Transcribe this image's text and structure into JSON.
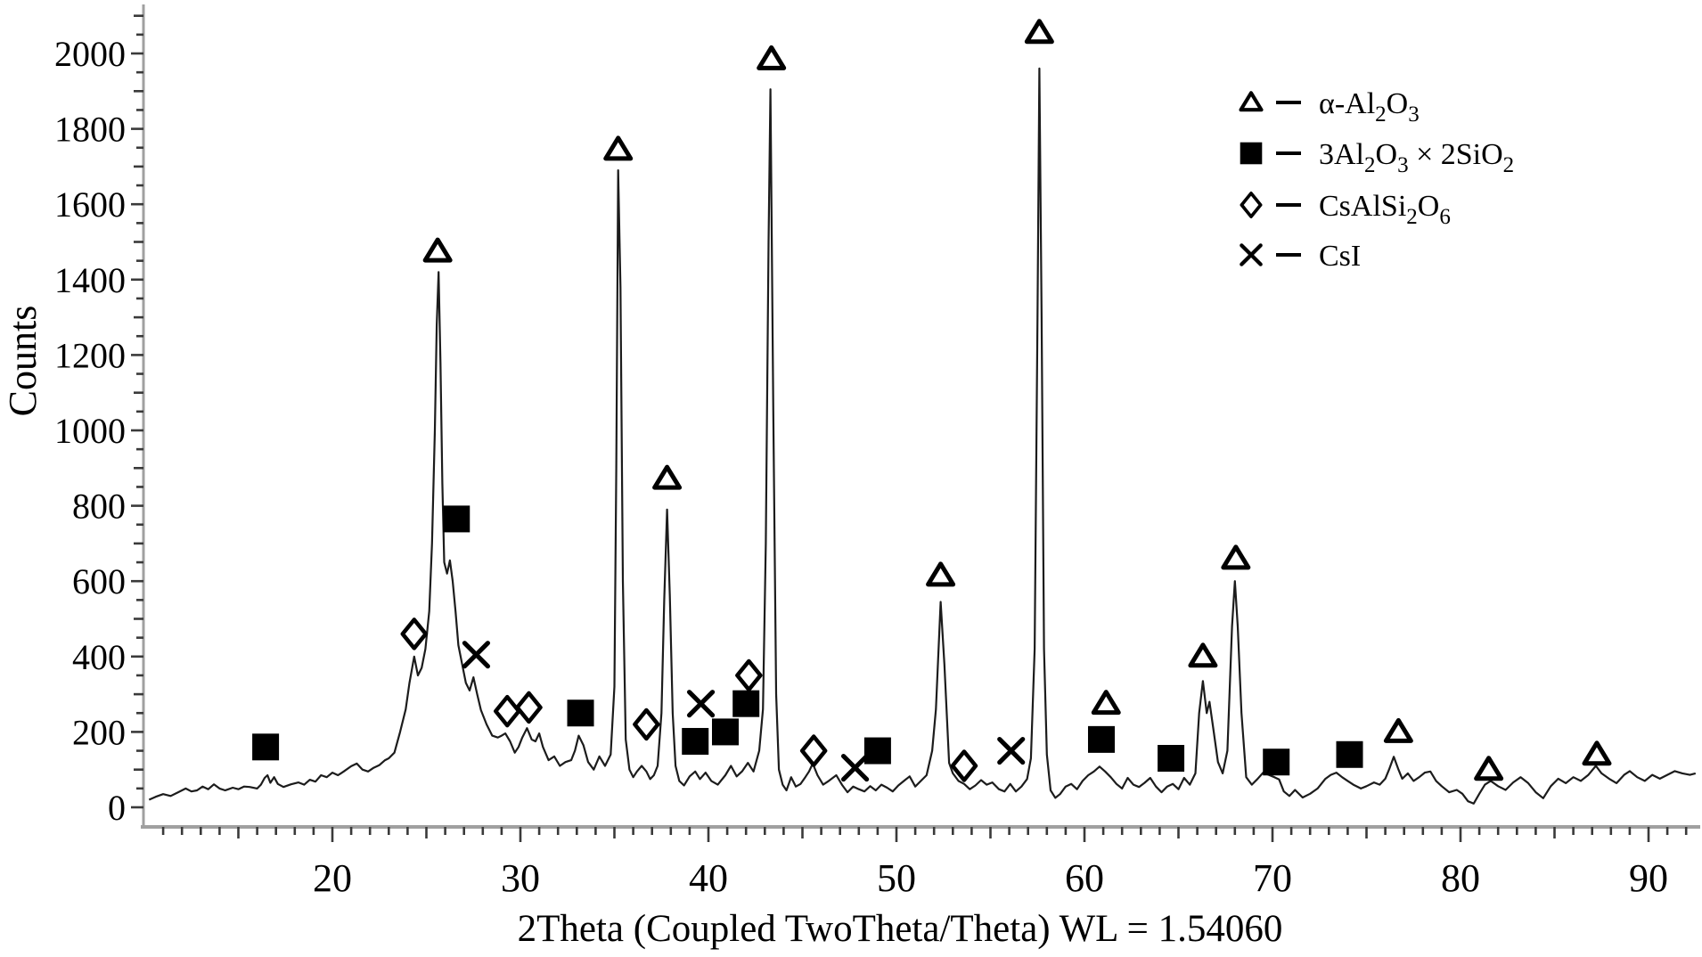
{
  "page": {
    "background": "#ffffff"
  },
  "colors": {
    "curve": "#1c1c1c",
    "marker": "#000000",
    "marker_fill": "#ffffff",
    "axis_line": "#a0a0a0",
    "tick": "#3a3a3a",
    "text": "#000000"
  },
  "legend": {
    "items": [
      {
        "name": "alpha-alumina",
        "symbol": "triangle",
        "segments": [
          {
            "t": "α-Al",
            "sub": false
          },
          {
            "t": "2",
            "sub": true
          },
          {
            "t": "O",
            "sub": false
          },
          {
            "t": "3",
            "sub": true
          }
        ]
      },
      {
        "name": "mullite",
        "symbol": "square",
        "segments": [
          {
            "t": "3Al",
            "sub": false
          },
          {
            "t": "2",
            "sub": true
          },
          {
            "t": "O",
            "sub": false
          },
          {
            "t": "3",
            "sub": true
          },
          {
            "t": " × 2SiO",
            "sub": false
          },
          {
            "t": "2",
            "sub": true
          }
        ]
      },
      {
        "name": "pollucite",
        "symbol": "diamond",
        "segments": [
          {
            "t": "CsAlSi",
            "sub": false
          },
          {
            "t": "2",
            "sub": true
          },
          {
            "t": "O",
            "sub": false
          },
          {
            "t": "6",
            "sub": true
          }
        ]
      },
      {
        "name": "cesium-iodide",
        "symbol": "x",
        "segments": [
          {
            "t": "CsI",
            "sub": false
          }
        ]
      }
    ]
  },
  "chart_data": {
    "type": "line",
    "title": "",
    "xlabel": "2Theta (Coupled TwoTheta/Theta) WL = 1.54060",
    "ylabel": "Counts",
    "xlim": [
      10,
      92.7
    ],
    "ylim": [
      0,
      2115
    ],
    "x_ticks": [
      20,
      30,
      40,
      50,
      60,
      70,
      80,
      90
    ],
    "y_ticks": [
      0,
      200,
      400,
      600,
      800,
      1000,
      1200,
      1400,
      1600,
      1800,
      2000
    ],
    "x_minor_step": 1,
    "y_minor_step": 50,
    "grid": false,
    "legend_position": "upper right",
    "series": [
      {
        "name": "α-Al2O3",
        "marker": "open-triangle",
        "points": [
          [
            25.6,
            1475
          ],
          [
            35.2,
            1745
          ],
          [
            37.8,
            872
          ],
          [
            43.35,
            1985
          ],
          [
            52.35,
            615
          ],
          [
            57.6,
            2055
          ],
          [
            61.15,
            275
          ],
          [
            66.3,
            400
          ],
          [
            68.05,
            660
          ],
          [
            76.7,
            200
          ],
          [
            81.5,
            100
          ],
          [
            87.25,
            140
          ]
        ]
      },
      {
        "name": "3Al2O3 × 2SiO2",
        "marker": "filled-square",
        "points": [
          [
            16.45,
            160
          ],
          [
            26.6,
            765
          ],
          [
            33.2,
            250
          ],
          [
            39.3,
            175
          ],
          [
            40.9,
            200
          ],
          [
            42.0,
            275
          ],
          [
            49.0,
            150
          ],
          [
            60.9,
            180
          ],
          [
            64.6,
            130
          ],
          [
            70.2,
            120
          ],
          [
            74.1,
            140
          ]
        ]
      },
      {
        "name": "CsAlSi2O6",
        "marker": "open-diamond",
        "points": [
          [
            24.35,
            460
          ],
          [
            29.3,
            255
          ],
          [
            30.45,
            265
          ],
          [
            36.7,
            220
          ],
          [
            42.15,
            350
          ],
          [
            45.6,
            150
          ],
          [
            53.6,
            110
          ]
        ]
      },
      {
        "name": "CsI",
        "marker": "x-cross",
        "points": [
          [
            27.65,
            405
          ],
          [
            39.6,
            275
          ],
          [
            47.8,
            105
          ],
          [
            56.1,
            150
          ]
        ]
      }
    ],
    "curve": [
      [
        10.25,
        20
      ],
      [
        10.6,
        28
      ],
      [
        11,
        35
      ],
      [
        11.4,
        30
      ],
      [
        11.8,
        40
      ],
      [
        12.2,
        50
      ],
      [
        12.5,
        42
      ],
      [
        12.8,
        45
      ],
      [
        13.1,
        55
      ],
      [
        13.4,
        48
      ],
      [
        13.7,
        61
      ],
      [
        14,
        50
      ],
      [
        14.3,
        45
      ],
      [
        14.7,
        52
      ],
      [
        15,
        48
      ],
      [
        15.3,
        55
      ],
      [
        15.6,
        54
      ],
      [
        16,
        50
      ],
      [
        16.2,
        60
      ],
      [
        16.4,
        78
      ],
      [
        16.55,
        85
      ],
      [
        16.7,
        65
      ],
      [
        16.9,
        80
      ],
      [
        17.1,
        62
      ],
      [
        17.4,
        54
      ],
      [
        17.8,
        61
      ],
      [
        18.2,
        66
      ],
      [
        18.5,
        60
      ],
      [
        18.8,
        73
      ],
      [
        19.1,
        68
      ],
      [
        19.4,
        85
      ],
      [
        19.7,
        80
      ],
      [
        20,
        92
      ],
      [
        20.3,
        85
      ],
      [
        20.6,
        95
      ],
      [
        21,
        109
      ],
      [
        21.3,
        116
      ],
      [
        21.6,
        100
      ],
      [
        21.9,
        95
      ],
      [
        22.2,
        105
      ],
      [
        22.5,
        112
      ],
      [
        22.8,
        125
      ],
      [
        23,
        130
      ],
      [
        23.3,
        145
      ],
      [
        23.6,
        200
      ],
      [
        23.9,
        260
      ],
      [
        24.1,
        330
      ],
      [
        24.35,
        400
      ],
      [
        24.55,
        350
      ],
      [
        24.75,
        370
      ],
      [
        24.95,
        420
      ],
      [
        25.15,
        520
      ],
      [
        25.3,
        700
      ],
      [
        25.45,
        1000
      ],
      [
        25.55,
        1280
      ],
      [
        25.65,
        1420
      ],
      [
        25.75,
        1180
      ],
      [
        25.85,
        860
      ],
      [
        25.95,
        650
      ],
      [
        26.1,
        620
      ],
      [
        26.25,
        655
      ],
      [
        26.4,
        600
      ],
      [
        26.55,
        520
      ],
      [
        26.7,
        430
      ],
      [
        26.9,
        380
      ],
      [
        27.1,
        330
      ],
      [
        27.3,
        310
      ],
      [
        27.5,
        345
      ],
      [
        27.7,
        300
      ],
      [
        27.9,
        258
      ],
      [
        28.2,
        220
      ],
      [
        28.5,
        190
      ],
      [
        28.8,
        185
      ],
      [
        29,
        190
      ],
      [
        29.2,
        196
      ],
      [
        29.45,
        175
      ],
      [
        29.7,
        145
      ],
      [
        29.9,
        160
      ],
      [
        30.1,
        185
      ],
      [
        30.35,
        210
      ],
      [
        30.6,
        180
      ],
      [
        30.8,
        175
      ],
      [
        31,
        196
      ],
      [
        31.2,
        160
      ],
      [
        31.5,
        125
      ],
      [
        31.8,
        135
      ],
      [
        32.1,
        110
      ],
      [
        32.4,
        120
      ],
      [
        32.7,
        125
      ],
      [
        32.9,
        150
      ],
      [
        33.1,
        190
      ],
      [
        33.35,
        165
      ],
      [
        33.6,
        120
      ],
      [
        33.9,
        100
      ],
      [
        34.2,
        135
      ],
      [
        34.5,
        110
      ],
      [
        34.8,
        140
      ],
      [
        35,
        320
      ],
      [
        35.1,
        900
      ],
      [
        35.2,
        1690
      ],
      [
        35.32,
        1380
      ],
      [
        35.45,
        600
      ],
      [
        35.6,
        180
      ],
      [
        35.8,
        100
      ],
      [
        36,
        80
      ],
      [
        36.2,
        95
      ],
      [
        36.45,
        110
      ],
      [
        36.7,
        95
      ],
      [
        36.9,
        75
      ],
      [
        37.1,
        85
      ],
      [
        37.3,
        110
      ],
      [
        37.5,
        250
      ],
      [
        37.65,
        550
      ],
      [
        37.8,
        790
      ],
      [
        37.95,
        560
      ],
      [
        38.1,
        250
      ],
      [
        38.25,
        110
      ],
      [
        38.45,
        70
      ],
      [
        38.7,
        58
      ],
      [
        39,
        82
      ],
      [
        39.3,
        95
      ],
      [
        39.55,
        75
      ],
      [
        39.85,
        92
      ],
      [
        40.15,
        70
      ],
      [
        40.5,
        60
      ],
      [
        40.9,
        85
      ],
      [
        41.2,
        110
      ],
      [
        41.5,
        82
      ],
      [
        41.8,
        96
      ],
      [
        42.1,
        118
      ],
      [
        42.4,
        95
      ],
      [
        42.7,
        150
      ],
      [
        42.9,
        260
      ],
      [
        43.05,
        700
      ],
      [
        43.2,
        1500
      ],
      [
        43.3,
        1905
      ],
      [
        43.45,
        1050
      ],
      [
        43.6,
        300
      ],
      [
        43.75,
        100
      ],
      [
        43.95,
        60
      ],
      [
        44.15,
        45
      ],
      [
        44.4,
        80
      ],
      [
        44.65,
        55
      ],
      [
        44.9,
        62
      ],
      [
        45.15,
        80
      ],
      [
        45.35,
        95
      ],
      [
        45.55,
        116
      ],
      [
        45.8,
        85
      ],
      [
        46.1,
        60
      ],
      [
        46.4,
        70
      ],
      [
        46.8,
        85
      ],
      [
        47.1,
        60
      ],
      [
        47.4,
        40
      ],
      [
        47.7,
        55
      ],
      [
        48,
        48
      ],
      [
        48.3,
        42
      ],
      [
        48.6,
        56
      ],
      [
        48.9,
        45
      ],
      [
        49.2,
        60
      ],
      [
        49.5,
        52
      ],
      [
        49.8,
        42
      ],
      [
        50.1,
        58
      ],
      [
        50.4,
        70
      ],
      [
        50.7,
        82
      ],
      [
        51,
        55
      ],
      [
        51.3,
        70
      ],
      [
        51.6,
        85
      ],
      [
        51.9,
        150
      ],
      [
        52.1,
        260
      ],
      [
        52.35,
        545
      ],
      [
        52.55,
        380
      ],
      [
        52.8,
        118
      ],
      [
        53,
        90
      ],
      [
        53.3,
        70
      ],
      [
        53.6,
        62
      ],
      [
        53.9,
        48
      ],
      [
        54.2,
        58
      ],
      [
        54.5,
        72
      ],
      [
        54.8,
        60
      ],
      [
        55.1,
        66
      ],
      [
        55.45,
        48
      ],
      [
        55.75,
        42
      ],
      [
        56.05,
        62
      ],
      [
        56.35,
        42
      ],
      [
        56.65,
        55
      ],
      [
        56.95,
        75
      ],
      [
        57.15,
        130
      ],
      [
        57.35,
        420
      ],
      [
        57.5,
        1300
      ],
      [
        57.6,
        1960
      ],
      [
        57.72,
        1300
      ],
      [
        57.85,
        420
      ],
      [
        58,
        140
      ],
      [
        58.2,
        45
      ],
      [
        58.45,
        25
      ],
      [
        58.7,
        35
      ],
      [
        59,
        55
      ],
      [
        59.3,
        62
      ],
      [
        59.6,
        48
      ],
      [
        59.9,
        70
      ],
      [
        60.2,
        85
      ],
      [
        60.5,
        95
      ],
      [
        60.8,
        108
      ],
      [
        61.1,
        95
      ],
      [
        61.4,
        80
      ],
      [
        61.7,
        62
      ],
      [
        62,
        50
      ],
      [
        62.3,
        78
      ],
      [
        62.6,
        60
      ],
      [
        62.9,
        54
      ],
      [
        63.2,
        65
      ],
      [
        63.5,
        78
      ],
      [
        63.8,
        55
      ],
      [
        64.1,
        40
      ],
      [
        64.4,
        55
      ],
      [
        64.7,
        62
      ],
      [
        65,
        48
      ],
      [
        65.3,
        78
      ],
      [
        65.6,
        60
      ],
      [
        65.9,
        90
      ],
      [
        66.1,
        250
      ],
      [
        66.3,
        335
      ],
      [
        66.5,
        250
      ],
      [
        66.65,
        280
      ],
      [
        66.85,
        210
      ],
      [
        67.1,
        120
      ],
      [
        67.35,
        90
      ],
      [
        67.6,
        150
      ],
      [
        67.85,
        480
      ],
      [
        68,
        600
      ],
      [
        68.15,
        480
      ],
      [
        68.35,
        250
      ],
      [
        68.6,
        80
      ],
      [
        68.9,
        60
      ],
      [
        69.2,
        75
      ],
      [
        69.5,
        92
      ],
      [
        69.8,
        86
      ],
      [
        70.1,
        80
      ],
      [
        70.35,
        74
      ],
      [
        70.6,
        42
      ],
      [
        70.9,
        30
      ],
      [
        71.2,
        46
      ],
      [
        71.6,
        26
      ],
      [
        72,
        36
      ],
      [
        72.4,
        50
      ],
      [
        72.8,
        75
      ],
      [
        73.1,
        86
      ],
      [
        73.4,
        92
      ],
      [
        73.7,
        80
      ],
      [
        74,
        70
      ],
      [
        74.3,
        60
      ],
      [
        74.7,
        50
      ],
      [
        75,
        56
      ],
      [
        75.4,
        66
      ],
      [
        75.7,
        60
      ],
      [
        76,
        76
      ],
      [
        76.2,
        100
      ],
      [
        76.45,
        134
      ],
      [
        76.7,
        100
      ],
      [
        76.9,
        76
      ],
      [
        77.2,
        90
      ],
      [
        77.5,
        70
      ],
      [
        77.8,
        80
      ],
      [
        78.1,
        92
      ],
      [
        78.4,
        95
      ],
      [
        78.7,
        70
      ],
      [
        79,
        56
      ],
      [
        79.4,
        40
      ],
      [
        79.8,
        46
      ],
      [
        80.1,
        36
      ],
      [
        80.4,
        16
      ],
      [
        80.7,
        10
      ],
      [
        81,
        36
      ],
      [
        81.3,
        60
      ],
      [
        81.6,
        70
      ],
      [
        82,
        56
      ],
      [
        82.4,
        46
      ],
      [
        82.8,
        66
      ],
      [
        83.2,
        80
      ],
      [
        83.6,
        64
      ],
      [
        84,
        40
      ],
      [
        84.4,
        24
      ],
      [
        84.8,
        56
      ],
      [
        85.2,
        76
      ],
      [
        85.6,
        64
      ],
      [
        86,
        80
      ],
      [
        86.4,
        70
      ],
      [
        86.8,
        86
      ],
      [
        87.2,
        110
      ],
      [
        87.5,
        90
      ],
      [
        87.9,
        76
      ],
      [
        88.3,
        64
      ],
      [
        88.7,
        86
      ],
      [
        89,
        96
      ],
      [
        89.4,
        80
      ],
      [
        89.8,
        70
      ],
      [
        90.2,
        86
      ],
      [
        90.6,
        76
      ],
      [
        91,
        86
      ],
      [
        91.4,
        96
      ],
      [
        91.8,
        90
      ],
      [
        92.2,
        86
      ],
      [
        92.5,
        90
      ]
    ]
  }
}
